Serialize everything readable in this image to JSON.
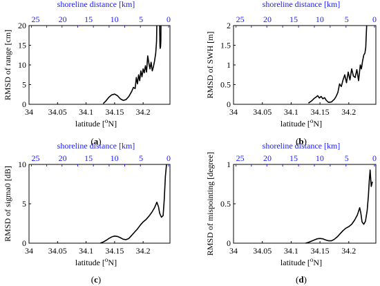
{
  "chart_data": [
    {
      "type": "line",
      "panel": "a",
      "xlabel": "latitude [°N]",
      "ylabel": "RMSD of range [cm]",
      "x2label": "shoreline distance [km]",
      "xlim": [
        34,
        34.247
      ],
      "ylim": [
        0,
        20
      ],
      "xticks": [
        34,
        34.05,
        34.1,
        34.15,
        34.2
      ],
      "xtick_labels": [
        "34",
        "34.05",
        "34.1",
        "34.15",
        "34.2"
      ],
      "yticks": [
        0,
        5,
        10,
        15,
        20
      ],
      "ytick_labels": [
        "0",
        "5",
        "10",
        "15",
        "20"
      ],
      "x2_lat": [
        34.0043,
        34.031,
        34.0578,
        34.0853,
        34.1128,
        34.1403,
        34.1677,
        34.1952,
        34.2446
      ],
      "x2_labels": [
        "25",
        "20",
        "15",
        "10",
        "5",
        "0"
      ],
      "x2_label_lat": [
        34.0115,
        34.0588,
        34.1043,
        34.1497,
        34.1963,
        34.2446
      ],
      "series": [
        {
          "x": [
            34.13,
            34.135,
            34.14,
            34.145,
            34.15,
            34.155,
            34.16,
            34.165,
            34.17,
            34.175,
            34.18,
            34.183,
            34.186,
            34.188,
            34.19,
            34.192,
            34.194,
            34.196,
            34.198,
            34.2,
            34.202,
            34.204,
            34.206,
            34.208,
            34.21,
            34.212,
            34.214,
            34.216,
            34.218,
            34.22,
            34.222,
            34.2235,
            34.224
          ],
          "y": [
            0.2,
            0.9,
            1.8,
            2.4,
            2.6,
            2.2,
            1.4,
            1.0,
            1.2,
            2.0,
            3.3,
            4.3,
            4.0,
            6.8,
            5.2,
            7.5,
            6.0,
            8.5,
            7.0,
            9.0,
            8.0,
            9.8,
            8.2,
            12.3,
            10.5,
            9.0,
            10.7,
            8.5,
            9.5,
            11.0,
            13.0,
            16.0,
            20.0
          ]
        },
        {
          "x": [
            34.229,
            34.2295,
            34.2298,
            34.2305,
            34.231,
            34.2313
          ],
          "y": [
            20.0,
            15.0,
            14.2,
            14.6,
            16.0,
            20.0
          ]
        }
      ]
    },
    {
      "type": "line",
      "panel": "b",
      "xlabel": "latitude [°N]",
      "ylabel": "RMSD of SWH [m]",
      "x2label": "shoreline distance [km]",
      "xlim": [
        34,
        34.247
      ],
      "ylim": [
        0,
        2
      ],
      "xticks": [
        34,
        34.05,
        34.1,
        34.15,
        34.2
      ],
      "xtick_labels": [
        "34",
        "34.05",
        "34.1",
        "34.15",
        "34.2"
      ],
      "yticks": [
        0,
        0.5,
        1,
        1.5,
        2
      ],
      "ytick_labels": [
        "0",
        "0.5",
        "1",
        "1.5",
        "2"
      ],
      "x2_lat": [
        34.0043,
        34.031,
        34.0578,
        34.0853,
        34.1128,
        34.1403,
        34.1677,
        34.1952,
        34.2446
      ],
      "x2_labels": [
        "25",
        "20",
        "15",
        "10",
        "5",
        "0"
      ],
      "x2_label_lat": [
        34.0115,
        34.0588,
        34.1043,
        34.1497,
        34.1963,
        34.2446
      ],
      "series": [
        {
          "x": [
            34.13,
            34.135,
            34.14,
            34.143,
            34.146,
            34.149,
            34.152,
            34.155,
            34.158,
            34.161,
            34.165,
            34.17,
            34.175,
            34.178,
            34.181,
            34.184,
            34.187,
            34.19,
            34.193,
            34.196,
            34.199,
            34.202,
            34.205,
            34.208,
            34.211,
            34.214,
            34.217,
            34.22,
            34.222,
            34.224,
            34.226,
            34.228,
            34.2295,
            34.2305,
            34.231
          ],
          "y": [
            0.03,
            0.08,
            0.15,
            0.18,
            0.22,
            0.16,
            0.2,
            0.14,
            0.17,
            0.1,
            0.05,
            0.06,
            0.13,
            0.2,
            0.3,
            0.52,
            0.45,
            0.62,
            0.75,
            0.55,
            0.82,
            0.62,
            0.9,
            0.72,
            0.68,
            0.88,
            0.6,
            1.0,
            0.9,
            1.1,
            1.25,
            1.3,
            1.45,
            1.8,
            2.0
          ]
        }
      ]
    },
    {
      "type": "line",
      "panel": "c",
      "xlabel": "latitude [°N]",
      "ylabel": "RMSD of sigma0 [dB]",
      "x2label": "shoreline distance [km]",
      "xlim": [
        34,
        34.247
      ],
      "ylim": [
        0,
        10
      ],
      "xticks": [
        34,
        34.05,
        34.1,
        34.15,
        34.2
      ],
      "xtick_labels": [
        "34",
        "34.05",
        "34.1",
        "34.15",
        "34.2"
      ],
      "yticks": [
        0,
        5,
        10
      ],
      "ytick_labels": [
        "0",
        "5",
        "10"
      ],
      "x2_lat": [
        34.0043,
        34.031,
        34.0578,
        34.0853,
        34.1128,
        34.1403,
        34.1677,
        34.1952,
        34.2446
      ],
      "x2_labels": [
        "25",
        "20",
        "15",
        "10",
        "5",
        "0"
      ],
      "x2_label_lat": [
        34.0115,
        34.0588,
        34.1043,
        34.1497,
        34.1963,
        34.2446
      ],
      "series": [
        {
          "x": [
            34.125,
            34.13,
            34.135,
            34.14,
            34.145,
            34.15,
            34.155,
            34.16,
            34.165,
            34.17,
            34.175,
            34.18,
            34.185,
            34.19,
            34.195,
            34.2,
            34.205,
            34.21,
            34.215,
            34.22,
            34.224,
            34.227,
            34.229,
            34.232,
            34.235,
            34.237,
            34.239,
            34.241
          ],
          "y": [
            0.0,
            0.15,
            0.35,
            0.6,
            0.8,
            0.9,
            0.85,
            0.7,
            0.5,
            0.45,
            0.6,
            1.0,
            1.4,
            1.8,
            2.3,
            2.7,
            3.0,
            3.4,
            3.9,
            4.5,
            5.2,
            4.6,
            3.8,
            3.3,
            3.5,
            5.5,
            8.5,
            10.0
          ]
        }
      ]
    },
    {
      "type": "line",
      "panel": "d",
      "xlabel": "latitude [°N]",
      "ylabel": "RMSD of mispointing [degree]",
      "x2label": "shoreline distance [km]",
      "xlim": [
        34,
        34.247
      ],
      "ylim": [
        0,
        1
      ],
      "xticks": [
        34,
        34.05,
        34.1,
        34.15,
        34.2
      ],
      "xtick_labels": [
        "34",
        "34.05",
        "34.1",
        "34.15",
        "34.2"
      ],
      "yticks": [
        0,
        0.5,
        1
      ],
      "ytick_labels": [
        "0",
        "0.5",
        "1"
      ],
      "x2_lat": [
        34.0043,
        34.031,
        34.0578,
        34.0853,
        34.1128,
        34.1403,
        34.1677,
        34.1952,
        34.2446
      ],
      "x2_labels": [
        "25",
        "20",
        "15",
        "10",
        "5",
        "0"
      ],
      "x2_label_lat": [
        34.0115,
        34.0588,
        34.1043,
        34.1497,
        34.1963,
        34.2446
      ],
      "series": [
        {
          "x": [
            34.125,
            34.13,
            34.135,
            34.14,
            34.145,
            34.15,
            34.155,
            34.16,
            34.165,
            34.17,
            34.175,
            34.18,
            34.185,
            34.19,
            34.195,
            34.2,
            34.205,
            34.21,
            34.215,
            34.219,
            34.221,
            34.223,
            34.226,
            34.229,
            34.232,
            34.234,
            34.2355,
            34.237,
            34.239,
            34.241
          ],
          "y": [
            0.0,
            0.01,
            0.025,
            0.04,
            0.055,
            0.06,
            0.055,
            0.04,
            0.03,
            0.03,
            0.05,
            0.08,
            0.12,
            0.16,
            0.19,
            0.21,
            0.24,
            0.29,
            0.36,
            0.45,
            0.38,
            0.27,
            0.24,
            0.28,
            0.42,
            0.6,
            0.78,
            0.93,
            0.72,
            0.78
          ]
        }
      ]
    }
  ]
}
